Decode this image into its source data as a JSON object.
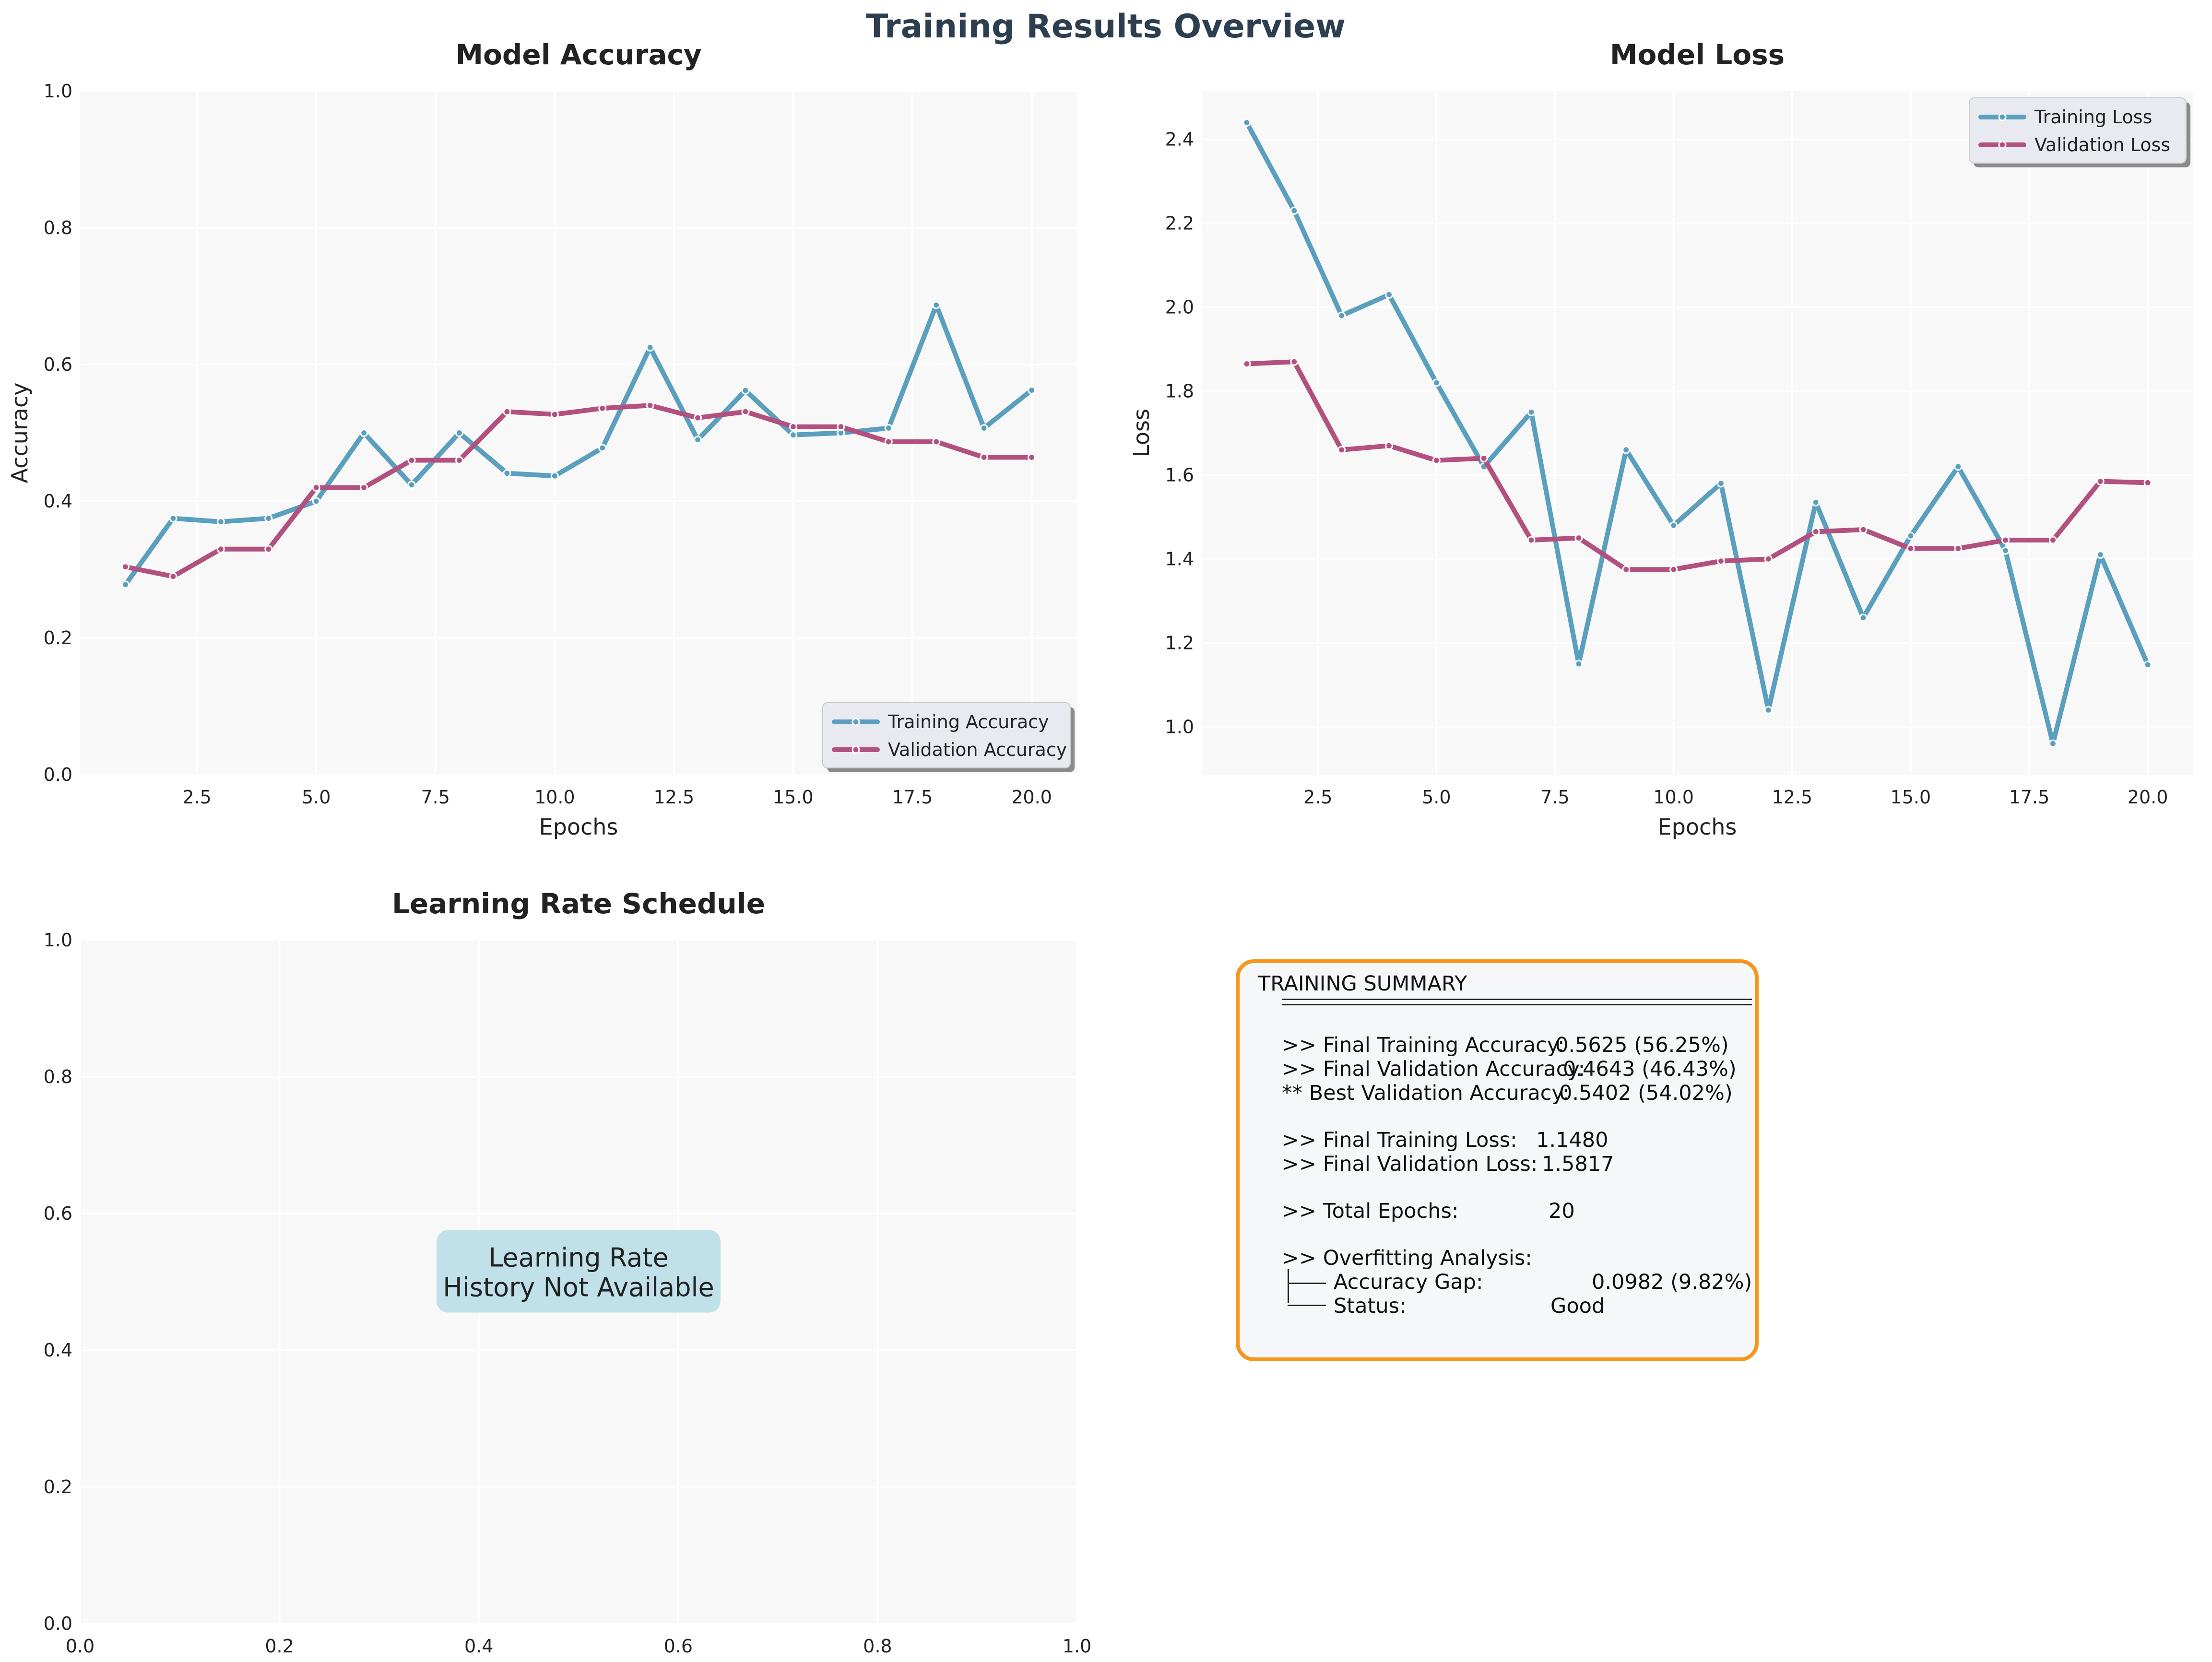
{
  "figure": {
    "title": "Training Results Overview",
    "title_color": "#2c3e50",
    "background": "#ffffff",
    "axes_face": "#f8f8f8"
  },
  "chart_data": [
    {
      "type": "line",
      "title": "Model Accuracy",
      "xlabel": "Epochs",
      "ylabel": "Accuracy",
      "xlim": [
        0.05,
        20.95
      ],
      "ylim": [
        0.0,
        1.0
      ],
      "xticks": [
        "2.5",
        "5.0",
        "7.5",
        "10.0",
        "12.5",
        "15.0",
        "17.5",
        "20.0"
      ],
      "yticks": [
        "0.0",
        "0.2",
        "0.4",
        "0.6",
        "0.8",
        "1.0"
      ],
      "grid": true,
      "legend_position": "lower-right",
      "x": [
        1,
        2,
        3,
        4,
        5,
        6,
        7,
        8,
        9,
        10,
        11,
        12,
        13,
        14,
        15,
        16,
        17,
        18,
        19,
        20
      ],
      "series": [
        {
          "name": "Training Accuracy",
          "color": "#5a9fbd",
          "values": [
            0.278,
            0.375,
            0.37,
            0.375,
            0.4,
            0.5,
            0.424,
            0.5,
            0.441,
            0.437,
            0.478,
            0.625,
            0.49,
            0.562,
            0.497,
            0.5,
            0.507,
            0.687,
            0.507,
            0.5625
          ]
        },
        {
          "name": "Validation Accuracy",
          "color": "#b2517f",
          "values": [
            0.304,
            0.29,
            0.33,
            0.33,
            0.42,
            0.42,
            0.46,
            0.46,
            0.531,
            0.527,
            0.536,
            0.5402,
            0.522,
            0.531,
            0.509,
            0.509,
            0.487,
            0.487,
            0.4643,
            0.4643
          ]
        }
      ]
    },
    {
      "type": "line",
      "title": "Model Loss",
      "xlabel": "Epochs",
      "ylabel": "Loss",
      "xlim": [
        0.05,
        20.95
      ],
      "ylim": [
        0.886,
        2.515
      ],
      "xticks": [
        "2.5",
        "5.0",
        "7.5",
        "10.0",
        "12.5",
        "15.0",
        "17.5",
        "20.0"
      ],
      "yticks": [
        "1.0",
        "1.2",
        "1.4",
        "1.6",
        "1.8",
        "2.0",
        "2.2",
        "2.4"
      ],
      "grid": true,
      "legend_position": "upper-right",
      "x": [
        1,
        2,
        3,
        4,
        5,
        6,
        7,
        8,
        9,
        10,
        11,
        12,
        13,
        14,
        15,
        16,
        17,
        18,
        19,
        20
      ],
      "series": [
        {
          "name": "Training Loss",
          "color": "#5a9fbd",
          "values": [
            2.44,
            2.23,
            1.98,
            2.03,
            1.82,
            1.62,
            1.75,
            1.15,
            1.66,
            1.48,
            1.58,
            1.04,
            1.535,
            1.26,
            1.455,
            1.62,
            1.42,
            0.96,
            1.41,
            1.148
          ]
        },
        {
          "name": "Validation Loss",
          "color": "#b2517f",
          "values": [
            1.865,
            1.87,
            1.66,
            1.67,
            1.635,
            1.64,
            1.445,
            1.45,
            1.375,
            1.375,
            1.395,
            1.4,
            1.465,
            1.47,
            1.425,
            1.425,
            1.445,
            1.445,
            1.585,
            1.5817
          ]
        }
      ]
    },
    {
      "type": "line",
      "title": "Learning Rate Schedule",
      "xlabel": "",
      "ylabel": "",
      "xlim": [
        0,
        1
      ],
      "ylim": [
        0,
        1
      ],
      "xticks": [
        "0.0",
        "0.2",
        "0.4",
        "0.6",
        "0.8",
        "1.0"
      ],
      "yticks": [
        "0.0",
        "0.2",
        "0.4",
        "0.6",
        "0.8",
        "1.0"
      ],
      "grid": true,
      "series": [],
      "annotation": [
        "Learning Rate",
        "History Not Available"
      ],
      "annotation_color": "#c1e1ea"
    }
  ],
  "summary": {
    "title": "TRAINING SUMMARY",
    "border_color": "#f5961d",
    "final_train_acc_label": ">> Final Training Accuracy:",
    "final_train_acc_value": "0.5625 (56.25%)",
    "final_val_acc_label": ">> Final Validation Accuracy:",
    "final_val_acc_value": "0.4643 (46.43%)",
    "best_val_acc_label": "** Best Validation Accuracy:",
    "best_val_acc_value": "0.5402 (54.02%)",
    "final_train_loss_label": ">> Final Training Loss:",
    "final_train_loss_value": "1.1480",
    "final_val_loss_label": ">> Final Validation Loss:",
    "final_val_loss_value": "1.5817",
    "total_epochs_label": ">> Total Epochs:",
    "total_epochs_value": "20",
    "overfitting_label": ">> Overfitting Analysis:",
    "gap_label": "Accuracy Gap:",
    "gap_value": "0.0982 (9.82%)",
    "status_label": "Status:",
    "status_value": "Good"
  }
}
